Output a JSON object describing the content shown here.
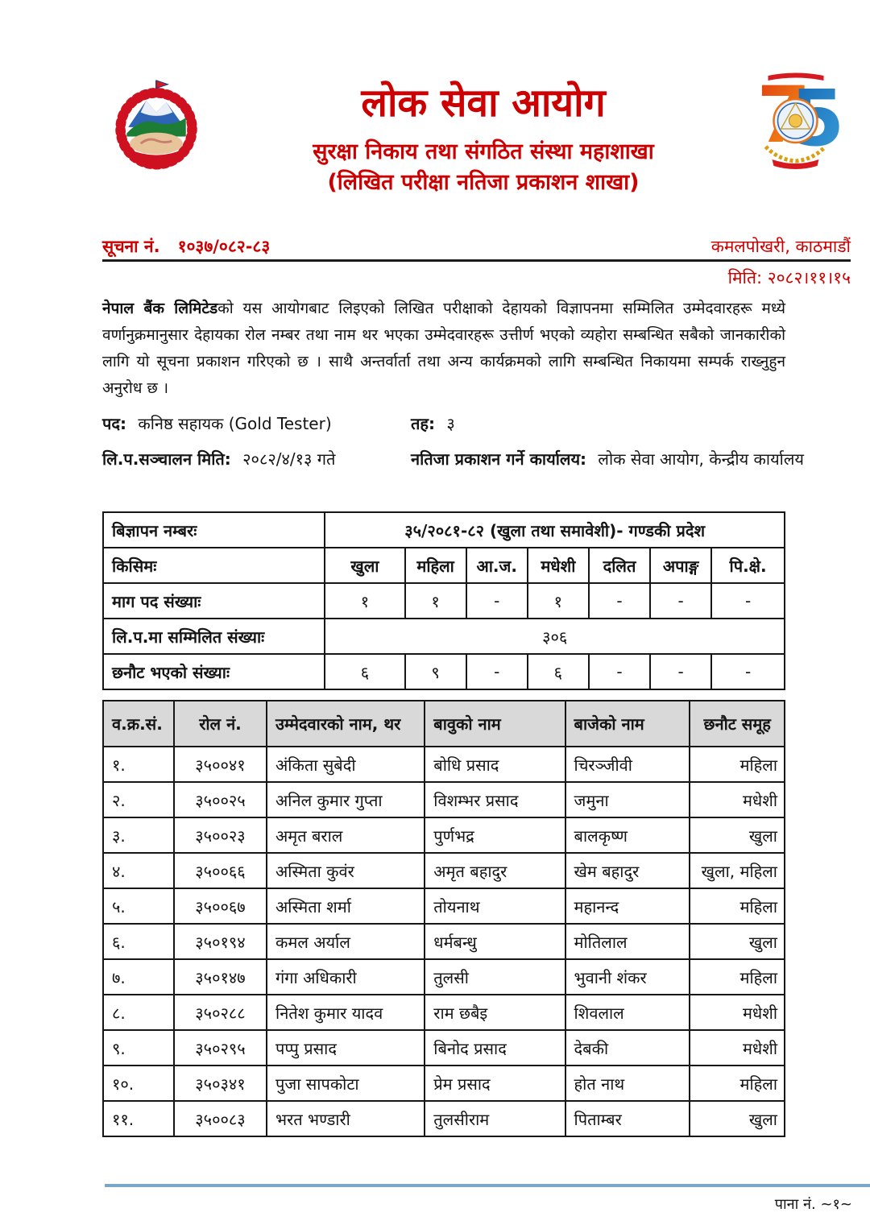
{
  "header": {
    "org_title": "लोक सेवा आयोग",
    "subtitle1": "सुरक्षा निकाय तथा संगठित संस्था महाशाखा",
    "subtitle2": "(लिखित परीक्षा नतिजा प्रकाशन शाखा)",
    "notice_label": "सूचना नं.",
    "notice_number": "१०३७/०८२-८३",
    "location": "कमलपोखरी, काठमाडौं",
    "date_line": "मिति: २०८२।११।१५"
  },
  "body": {
    "paragraph_bold": "नेपाल बैंक लिमिटेड",
    "paragraph_rest": "को यस आयोगबाट लिइएको लिखित परीक्षाको देहायको विज्ञापनमा सम्मिलित उम्मेदवारहरू मध्ये वर्णानुक्रमानुसार देहायका रोल नम्बर तथा नाम थर भएका उम्मेदवारहरू उत्तीर्ण भएको व्यहोरा सम्बन्धित सबैको जानकारीको लागि यो सूचना प्रकाशन गरिएको छ । साथै अन्तर्वार्ता तथा अन्य कार्यक्रमको लागि सम्बन्धित निकायमा सम्पर्क राख्नुहुन अनुरोध छ ।",
    "post_label": "पद:",
    "post_value": "कनिष्ठ सहायक (Gold Tester)",
    "level_label": "तह:",
    "level_value": "३",
    "exam_date_label": "लि.प.सञ्चालन मिति:",
    "exam_date_value": "२०८२/४/१३ गते",
    "office_label": "नतिजा प्रकाशन गर्ने कार्यालय:",
    "office_value": "लोक सेवा आयोग, केन्द्रीय कार्यालय"
  },
  "summary_table": {
    "advert_label": "बिज्ञापन नम्बरः",
    "advert_value": "३५/२०८१-८२ (खुला तथा समावेशी)- गण्डकी प्रदेश",
    "type_label": "किसिमः",
    "categories": [
      "खुला",
      "महिला",
      "आ.ज.",
      "मधेशी",
      "दलित",
      "अपाङ्ग",
      "पि.क्षे."
    ],
    "demand_label": "माग पद संख्याः",
    "demand_values": [
      "१",
      "१",
      "-",
      "१",
      "-",
      "-",
      "-"
    ],
    "appeared_label": "लि.प.मा सम्मिलित संख्याः",
    "appeared_value": "३०६",
    "selected_label": "छनौट भएको संख्याः",
    "selected_values": [
      "६",
      "९",
      "-",
      "६",
      "-",
      "-",
      "-"
    ]
  },
  "results_table": {
    "headers": [
      "व.क्र.सं.",
      "रोल नं.",
      "उम्मेदवारको नाम, थर",
      "बावुको नाम",
      "बाजेको नाम",
      "छनौट समूह"
    ],
    "rows": [
      [
        "१.",
        "३५००४१",
        "अंकिता सुबेदी",
        "बोधि प्रसाद",
        "चिरञ्जीवी",
        "महिला"
      ],
      [
        "२.",
        "३५००२५",
        "अनिल कुमार गुप्ता",
        "विशम्भर प्रसाद",
        "जमुना",
        "मधेशी"
      ],
      [
        "३.",
        "३५००२३",
        "अमृत बराल",
        "पुर्णभद्र",
        "बालकृष्ण",
        "खुला"
      ],
      [
        "४.",
        "३५००६६",
        "अस्मिता कुवंर",
        "अमृत बहादुर",
        "खेम बहादुर",
        "खुला, महिला"
      ],
      [
        "५.",
        "३५००६७",
        "अस्मिता शर्मा",
        "तोयनाथ",
        "महानन्द",
        "महिला"
      ],
      [
        "६.",
        "३५०१९४",
        "कमल अर्याल",
        "धर्मबन्धु",
        "मोतिलाल",
        "खुला"
      ],
      [
        "७.",
        "३५०१४७",
        "गंगा अधिकारी",
        "तुलसी",
        "भुवानी शंकर",
        "महिला"
      ],
      [
        "८.",
        "३५०२८८",
        "नितेश कुमार यादव",
        "राम छबैइ",
        "शिवलाल",
        "मधेशी"
      ],
      [
        "९.",
        "३५०२९५",
        "पप्पु प्रसाद",
        "बिनोद प्रसाद",
        "देबकी",
        "मधेशी"
      ],
      [
        "१०.",
        "३५०३४१",
        "पुजा सापकोटा",
        "प्रेम प्रसाद",
        "होत नाथ",
        "महिला"
      ],
      [
        "११.",
        "३५००८३",
        "भरत भण्डारी",
        "तुलसीराम",
        "पिताम्बर",
        "खुला"
      ]
    ]
  },
  "footer": {
    "page_number": "पाना नं. ~१~"
  },
  "icons": {
    "left_logo": "nepal-government-emblem",
    "right_logo": "psc-75th-anniversary-logo"
  },
  "colors": {
    "accent_red": "#cc0000",
    "table_header_gray": "#d9d9d9",
    "footer_line_blue": "#7aa6c9"
  }
}
